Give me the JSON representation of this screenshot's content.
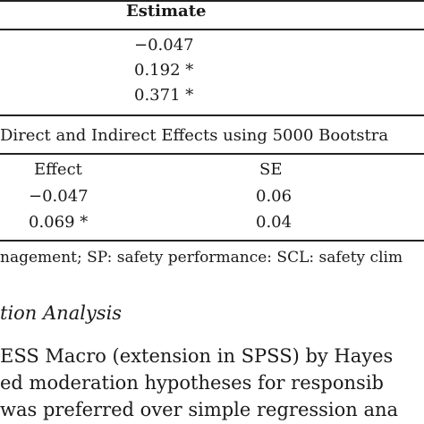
{
  "table": {
    "header_estimate": "Estimate",
    "estimates": [
      "−0.047",
      "0.192 *",
      "0.371 *"
    ],
    "section_title": "Direct and Indirect Effects using 5000 Bootstra",
    "col_effect": "Effect",
    "col_se": "SE",
    "rows": [
      {
        "effect": "−0.047",
        "se": "0.06"
      },
      {
        "effect": "0.069 *",
        "se": "0.04"
      }
    ],
    "note": "nagement; SP: safety performance: SCL: safety clim"
  },
  "body": {
    "section_heading": "tion Analysis",
    "lines": [
      "ESS Macro (extension in SPSS) by Hayes",
      "ed moderation hypotheses for responsib",
      "was preferred over simple regression ana"
    ]
  }
}
